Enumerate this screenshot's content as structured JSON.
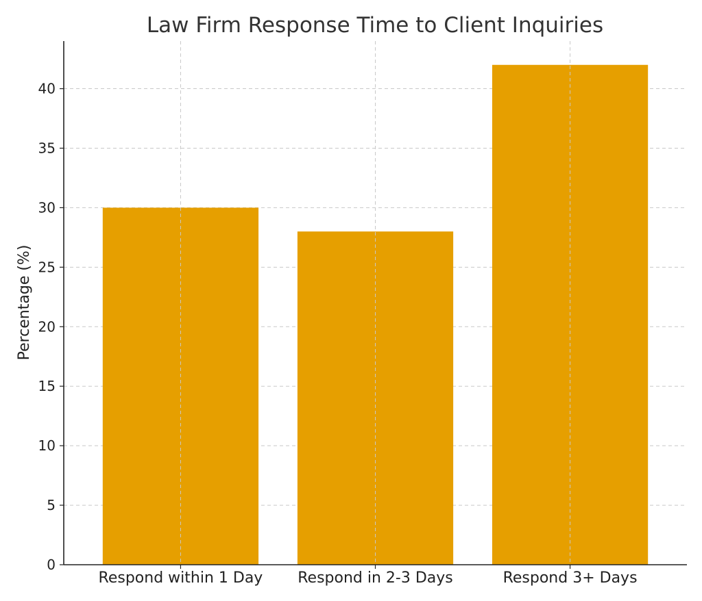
{
  "chart_data": {
    "type": "bar",
    "title": "Law Firm Response Time to Client Inquiries",
    "xlabel": "",
    "ylabel": "Percentage (%)",
    "categories": [
      "Respond within 1 Day",
      "Respond in 2-3 Days",
      "Respond 3+ Days"
    ],
    "values": [
      30,
      28,
      42
    ],
    "ylim": [
      0,
      44
    ],
    "yticks": [
      0,
      5,
      10,
      15,
      20,
      25,
      30,
      35,
      40
    ],
    "grid": true,
    "bar_color": "#E69F00"
  }
}
